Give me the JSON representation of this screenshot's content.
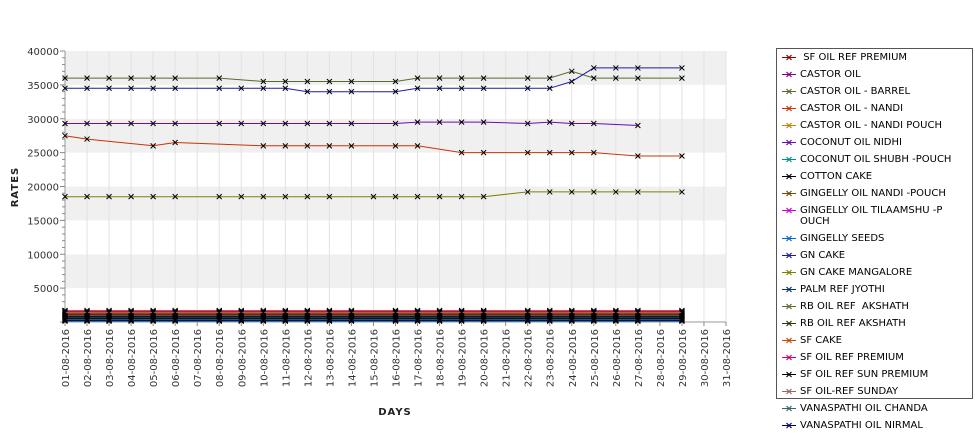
{
  "chart_data": {
    "type": "line",
    "title": "",
    "xlabel": "DAYS",
    "ylabel": "RATES",
    "ylim": [
      0,
      40000
    ],
    "yticks": [
      5000,
      10000,
      15000,
      20000,
      25000,
      30000,
      35000,
      40000
    ],
    "grid": true,
    "legend_position": "right",
    "x": [
      "01-08-2016",
      "02-08-2016",
      "03-08-2016",
      "04-08-2016",
      "05-08-2016",
      "06-08-2016",
      "07-08-2016",
      "08-08-2016",
      "09-08-2016",
      "10-08-2016",
      "11-08-2016",
      "12-08-2016",
      "13-08-2016",
      "14-08-2016",
      "15-08-2016",
      "16-08-2016",
      "17-08-2016",
      "18-08-2016",
      "19-08-2016",
      "20-08-2016",
      "21-08-2016",
      "22-08-2016",
      "23-08-2016",
      "24-08-2016",
      "25-08-2016",
      "26-08-2016",
      "27-08-2016",
      "28-08-2016",
      "29-08-2016",
      "30-08-2016",
      "31-08-2016"
    ],
    "series": [
      {
        "name": " SF OIL REF PREMIUM",
        "color": "#8b0000",
        "values": [
          1100,
          1100,
          1100,
          1100,
          1100,
          1100,
          null,
          1100,
          1100,
          1100,
          1100,
          1100,
          1100,
          1100,
          null,
          1100,
          1100,
          1100,
          1100,
          1100,
          null,
          1100,
          1100,
          1100,
          1100,
          1100,
          1100,
          null,
          1100,
          null,
          null
        ]
      },
      {
        "name": "CASTOR OIL",
        "color": "#800080",
        "values": [
          900,
          900,
          900,
          900,
          900,
          900,
          null,
          900,
          900,
          900,
          900,
          900,
          900,
          900,
          null,
          900,
          900,
          900,
          900,
          900,
          null,
          900,
          900,
          900,
          900,
          900,
          900,
          null,
          900,
          null,
          null
        ]
      },
      {
        "name": "CASTOR OIL - BARREL",
        "color": "#556b2f",
        "values": [
          36000,
          36000,
          36000,
          36000,
          36000,
          36000,
          null,
          36000,
          null,
          35500,
          35500,
          35500,
          35500,
          35500,
          null,
          35500,
          36000,
          36000,
          36000,
          36000,
          null,
          36000,
          36000,
          37000,
          36000,
          36000,
          36000,
          null,
          36000,
          null,
          null
        ]
      },
      {
        "name": "CASTOR OIL - NANDI",
        "color": "#cc3300",
        "values": [
          27500,
          27000,
          null,
          null,
          26000,
          26500,
          null,
          null,
          null,
          26000,
          26000,
          26000,
          26000,
          26000,
          null,
          26000,
          26000,
          null,
          25000,
          25000,
          null,
          25000,
          25000,
          25000,
          25000,
          null,
          24500,
          null,
          24500,
          null,
          null
        ]
      },
      {
        "name": "CASTOR OIL - NANDI POUCH",
        "color": "#b8860b",
        "values": [
          1700,
          1700,
          1700,
          1700,
          1700,
          1700,
          null,
          1700,
          1700,
          1700,
          1700,
          1700,
          1700,
          1700,
          null,
          1700,
          1700,
          1700,
          1700,
          1700,
          null,
          1700,
          1700,
          1700,
          1700,
          1700,
          1700,
          null,
          1700,
          null,
          null
        ]
      },
      {
        "name": "COCONUT OIL NIDHI",
        "color": "#6a0dad",
        "values": [
          29300,
          29300,
          29300,
          29300,
          29300,
          29300,
          null,
          29300,
          29300,
          29300,
          29300,
          29300,
          29300,
          29300,
          null,
          29300,
          29500,
          29500,
          29500,
          29500,
          null,
          29300,
          29500,
          29300,
          29300,
          null,
          29000,
          null,
          null,
          null,
          null
        ]
      },
      {
        "name": "COCONUT OIL SHUBH -POUCH",
        "color": "#008b8b",
        "values": [
          100,
          100,
          100,
          100,
          100,
          100,
          null,
          100,
          100,
          100,
          100,
          100,
          100,
          100,
          null,
          100,
          100,
          100,
          100,
          100,
          null,
          100,
          100,
          100,
          100,
          100,
          100,
          null,
          100,
          null,
          null
        ]
      },
      {
        "name": "COTTON CAKE",
        "color": "#000000",
        "values": [
          800,
          800,
          800,
          800,
          800,
          800,
          null,
          800,
          800,
          800,
          800,
          800,
          800,
          800,
          null,
          800,
          800,
          800,
          800,
          800,
          null,
          800,
          800,
          800,
          800,
          800,
          800,
          null,
          800,
          null,
          null
        ]
      },
      {
        "name": "GINGELLY OIL NANDI -POUCH",
        "color": "#6b4c00",
        "values": [
          600,
          600,
          600,
          600,
          600,
          600,
          null,
          600,
          600,
          600,
          600,
          600,
          600,
          600,
          null,
          600,
          600,
          600,
          600,
          600,
          null,
          600,
          600,
          600,
          600,
          600,
          600,
          null,
          600,
          null,
          null
        ]
      },
      {
        "name": "GINGELLY OIL TILAAMSHU -P\nOUCH",
        "color": "#cc00cc",
        "values": [
          1500,
          1500,
          1500,
          1500,
          1500,
          1500,
          null,
          1500,
          1500,
          1500,
          1500,
          1500,
          1500,
          1500,
          null,
          1500,
          1500,
          1500,
          1500,
          1500,
          null,
          1500,
          1500,
          1500,
          1500,
          1500,
          1500,
          null,
          1500,
          null,
          null
        ]
      },
      {
        "name": "GINGELLY SEEDS",
        "color": "#0066cc",
        "values": [
          400,
          400,
          400,
          400,
          400,
          400,
          null,
          400,
          400,
          400,
          400,
          400,
          400,
          400,
          null,
          400,
          400,
          400,
          400,
          400,
          null,
          400,
          400,
          400,
          400,
          400,
          400,
          null,
          400,
          null,
          null
        ]
      },
      {
        "name": "GN CAKE",
        "color": "#1c1ca8",
        "values": [
          34500,
          34500,
          34500,
          34500,
          34500,
          34500,
          null,
          34500,
          34500,
          34500,
          34500,
          34000,
          34000,
          34000,
          null,
          34000,
          34500,
          34500,
          34500,
          34500,
          null,
          34500,
          34500,
          35500,
          37500,
          37500,
          37500,
          null,
          37500,
          null,
          null
        ]
      },
      {
        "name": "GN CAKE MANGALORE",
        "color": "#808000",
        "values": [
          18500,
          18500,
          18500,
          18500,
          18500,
          18500,
          null,
          18500,
          18500,
          18500,
          18500,
          18500,
          18500,
          null,
          18500,
          18500,
          18500,
          18500,
          18500,
          18500,
          null,
          19200,
          19200,
          19200,
          19200,
          19200,
          19200,
          null,
          19200,
          null,
          null
        ]
      },
      {
        "name": "PALM REF JYOTHI",
        "color": "#003366",
        "values": [
          700,
          700,
          700,
          700,
          700,
          700,
          null,
          700,
          700,
          700,
          700,
          700,
          700,
          700,
          null,
          700,
          700,
          700,
          700,
          700,
          null,
          700,
          700,
          700,
          700,
          700,
          700,
          null,
          700,
          null,
          null
        ]
      },
      {
        "name": "RB OIL REF  AKSHATH",
        "color": "#666633",
        "values": [
          1000,
          1000,
          1000,
          1000,
          1000,
          1000,
          null,
          1000,
          1000,
          1000,
          1000,
          1000,
          1000,
          1000,
          null,
          1000,
          1000,
          1000,
          1000,
          1000,
          null,
          1000,
          1000,
          1000,
          1000,
          1000,
          1000,
          null,
          1000,
          null,
          null
        ]
      },
      {
        "name": "RB OIL REF AKSHATH",
        "color": "#333300",
        "values": [
          1200,
          1200,
          1200,
          1200,
          1200,
          1200,
          null,
          1200,
          1200,
          1200,
          1200,
          1200,
          1200,
          1200,
          null,
          1200,
          1200,
          1200,
          1200,
          1200,
          null,
          1200,
          1200,
          1200,
          1200,
          1200,
          1200,
          null,
          1200,
          null,
          null
        ]
      },
      {
        "name": "SF CAKE",
        "color": "#cc4400",
        "values": [
          1300,
          1300,
          1300,
          1300,
          1300,
          1300,
          null,
          1300,
          1300,
          1300,
          1300,
          1300,
          1300,
          1300,
          null,
          1300,
          1300,
          1300,
          1300,
          1300,
          null,
          1300,
          1300,
          1300,
          1300,
          1300,
          1300,
          null,
          1300,
          null,
          null
        ]
      },
      {
        "name": "SF OIL REF PREMIUM",
        "color": "#cc0066",
        "values": [
          1600,
          1600,
          1600,
          1600,
          1600,
          1600,
          null,
          1600,
          1600,
          1600,
          1600,
          1600,
          1600,
          1600,
          null,
          1600,
          1600,
          1600,
          1600,
          1600,
          null,
          1600,
          1600,
          1600,
          1600,
          1600,
          1600,
          null,
          1600,
          null,
          null
        ]
      },
      {
        "name": "SF OIL REF SUN PREMIUM",
        "color": "#000000",
        "values": [
          500,
          500,
          500,
          500,
          500,
          500,
          null,
          500,
          500,
          500,
          500,
          500,
          500,
          500,
          null,
          500,
          500,
          500,
          500,
          500,
          null,
          500,
          500,
          500,
          500,
          500,
          500,
          null,
          500,
          null,
          null
        ]
      },
      {
        "name": "SF OIL-REF SUNDAY",
        "color": "#996666",
        "values": [
          1400,
          1400,
          1400,
          1400,
          1400,
          1400,
          null,
          1400,
          1400,
          1400,
          1400,
          1400,
          1400,
          1400,
          null,
          1400,
          1400,
          1400,
          1400,
          1400,
          null,
          1400,
          1400,
          1400,
          1400,
          1400,
          1400,
          null,
          1400,
          null,
          null
        ]
      },
      {
        "name": "VANASPATHI OIL CHANDA",
        "color": "#336666",
        "values": [
          300,
          300,
          300,
          300,
          300,
          300,
          null,
          300,
          300,
          300,
          300,
          300,
          300,
          300,
          null,
          300,
          300,
          300,
          300,
          300,
          null,
          300,
          300,
          300,
          300,
          300,
          300,
          null,
          300,
          null,
          null
        ]
      },
      {
        "name": "VANASPATHI OIL NIRMAL",
        "color": "#000066",
        "values": [
          200,
          200,
          200,
          200,
          200,
          200,
          null,
          200,
          200,
          200,
          200,
          200,
          200,
          200,
          null,
          200,
          200,
          200,
          200,
          200,
          null,
          200,
          200,
          200,
          200,
          200,
          200,
          null,
          200,
          null,
          null
        ]
      }
    ]
  }
}
